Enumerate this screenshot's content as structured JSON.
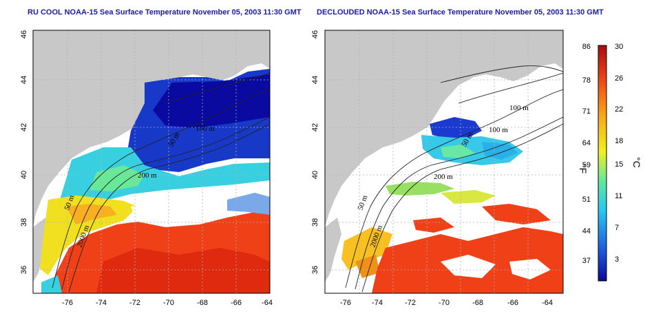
{
  "panels": [
    {
      "title": "RU COOL NOAA-15 Sea Surface Temperature November 05, 2003 11:30 GMT"
    },
    {
      "title": "DECLOUDED NOAA-15 Sea Surface Temperature November 05, 2003 11:30 GMT"
    }
  ],
  "axes": {
    "x_ticks": [
      "-76",
      "-74",
      "-72",
      "-70",
      "-68",
      "-66",
      "-64"
    ],
    "y_ticks": [
      "46",
      "44",
      "42",
      "40",
      "38",
      "36"
    ],
    "xlim": [
      -77,
      -63
    ],
    "ylim": [
      35,
      46
    ]
  },
  "contour_labels_left": [
    "100 m",
    "200 m",
    "50 m",
    "2000 m",
    "50 m"
  ],
  "contour_labels_right": [
    "100 m",
    "100 m",
    "200 m",
    "50 m",
    "2000 m",
    "50 m"
  ],
  "colorbar": {
    "fahrenheit_ticks": [
      "86",
      "78",
      "71",
      "64",
      "59",
      "51",
      "44",
      "37"
    ],
    "celsius_ticks": [
      "30",
      "26",
      "22",
      "18",
      "15",
      "11",
      "7",
      "3"
    ],
    "left_unit": "°F",
    "right_unit": "°C",
    "colors": [
      "#0a0a9a",
      "#1f5fe0",
      "#28c8f0",
      "#5fe8a0",
      "#f0f020",
      "#f8a818",
      "#f04818",
      "#a80c0c"
    ]
  },
  "colors": {
    "land": "#c8c8c8",
    "title": "#1a1aa6"
  }
}
